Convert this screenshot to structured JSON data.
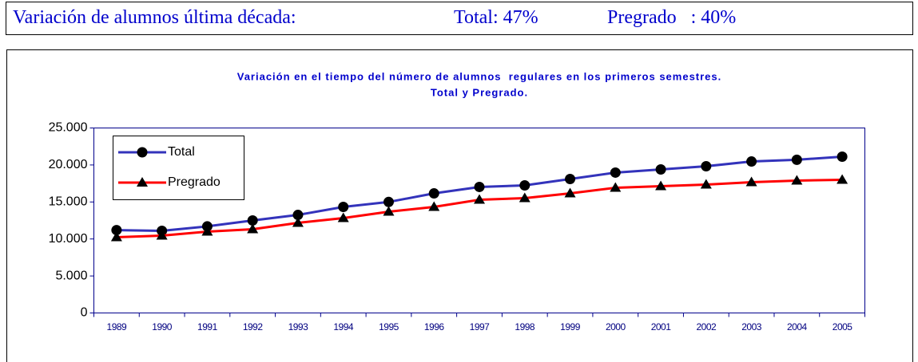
{
  "header": {
    "label": "Variación de alumnos última década:",
    "total": "Total: 47%",
    "pregrado": "Pregrado   : 40%"
  },
  "chart_data": {
    "type": "line",
    "title": [
      "Variación en el tiempo del número de alumnos  regulares en los primeros semestres.",
      "Total y Pregrado."
    ],
    "categories": [
      "1989",
      "1990",
      "1991",
      "1992",
      "1993",
      "1994",
      "1995",
      "1996",
      "1997",
      "1998",
      "1999",
      "2000",
      "2001",
      "2002",
      "2003",
      "2004",
      "2005"
    ],
    "series": [
      {
        "name": "Total",
        "color": "#3333bb",
        "marker": "circle",
        "values": [
          11200,
          11100,
          11700,
          12500,
          13250,
          14330,
          15000,
          16160,
          17030,
          17240,
          18100,
          18970,
          19400,
          19830,
          20470,
          20700,
          21120
        ]
      },
      {
        "name": "Pregrado",
        "color": "#ff0000",
        "marker": "triangle",
        "values": [
          10240,
          10450,
          10990,
          11310,
          12180,
          12820,
          13690,
          14330,
          15300,
          15520,
          16160,
          16920,
          17130,
          17350,
          17670,
          17890,
          18000
        ]
      }
    ],
    "ylim": [
      0,
      25000
    ],
    "yticks": [
      0,
      {
        "value": 5000,
        "label": "5.000"
      },
      {
        "value": 10000,
        "label": "10.000"
      },
      {
        "value": 15000,
        "label": "15.000"
      },
      {
        "value": 20000,
        "label": "20.000"
      },
      {
        "value": 25000,
        "label": "25.000"
      }
    ],
    "legend": "upper left"
  }
}
